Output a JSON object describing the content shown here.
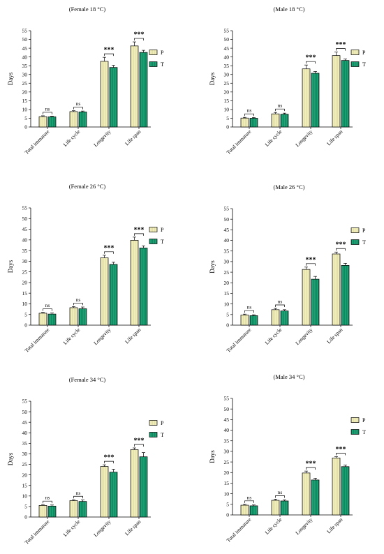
{
  "colors": {
    "P": "#f2efbd",
    "T": "#1aa676",
    "stroke": "#000000"
  },
  "chart_data": [
    {
      "type": "bar",
      "title": "(Female 18 °C)",
      "ylabel": "Days",
      "xlabel": "",
      "categories": [
        "Total immature",
        "Life cycle",
        "Longevity",
        "Life span"
      ],
      "ylim": [
        0,
        55
      ],
      "yticks": [
        0,
        5,
        10,
        15,
        20,
        25,
        30,
        35,
        40,
        45,
        50,
        55
      ],
      "legend": "right",
      "grid": false,
      "series": [
        {
          "name": "P",
          "values": [
            5.9,
            8.8,
            37.5,
            46.3
          ],
          "errors": [
            0.5,
            0.5,
            2.3,
            2.3
          ]
        },
        {
          "name": "T",
          "values": [
            5.8,
            8.6,
            34.0,
            42.6
          ],
          "errors": [
            0.4,
            0.5,
            1.2,
            1.2
          ]
        }
      ],
      "significance": [
        "ns",
        "ns",
        "***",
        "***"
      ]
    },
    {
      "type": "bar",
      "title": "(Male 18 °C)",
      "ylabel": "Days",
      "xlabel": "",
      "categories": [
        "Total immature",
        "Life cycle",
        "Longevity",
        "Life span"
      ],
      "ylim": [
        0,
        55
      ],
      "yticks": [
        0,
        5,
        10,
        15,
        20,
        25,
        30,
        35,
        40,
        45,
        50,
        55
      ],
      "legend": "right",
      "grid": false,
      "series": [
        {
          "name": "P",
          "values": [
            5.1,
            7.5,
            33.2,
            40.8
          ],
          "errors": [
            0.4,
            0.8,
            2.2,
            2.0
          ]
        },
        {
          "name": "T",
          "values": [
            5.0,
            7.3,
            30.7,
            38.0
          ],
          "errors": [
            0.4,
            0.6,
            1.0,
            0.8
          ]
        }
      ],
      "significance": [
        "ns",
        "ns",
        "***",
        "***"
      ]
    },
    {
      "type": "bar",
      "title": "(Female 26 °C)",
      "ylabel": "Days",
      "xlabel": "",
      "categories": [
        "Total immature",
        "Life cycle",
        "Longevity",
        "Life span"
      ],
      "ylim": [
        0,
        55
      ],
      "yticks": [
        0,
        5,
        10,
        15,
        20,
        25,
        30,
        35,
        40,
        45,
        50,
        55
      ],
      "legend": "right",
      "grid": false,
      "series": [
        {
          "name": "P",
          "values": [
            5.6,
            8.2,
            31.6,
            39.8
          ],
          "errors": [
            0.4,
            0.5,
            1.2,
            1.5
          ]
        },
        {
          "name": "T",
          "values": [
            5.2,
            7.7,
            28.5,
            36.2
          ],
          "errors": [
            0.5,
            0.8,
            1.0,
            1.0
          ]
        }
      ],
      "significance": [
        "ns",
        "ns",
        "***",
        "***"
      ]
    },
    {
      "type": "bar",
      "title": "(Male 26 °C)",
      "ylabel": "Days",
      "xlabel": "",
      "categories": [
        "Total immature",
        "Life cycle",
        "Longevity",
        "Life span"
      ],
      "ylim": [
        0,
        55
      ],
      "yticks": [
        0,
        5,
        10,
        15,
        20,
        25,
        30,
        35,
        40,
        45,
        50,
        55
      ],
      "legend": "right",
      "grid": false,
      "series": [
        {
          "name": "P",
          "values": [
            4.8,
            7.3,
            26.3,
            33.6
          ],
          "errors": [
            0.4,
            0.6,
            1.1,
            0.9
          ]
        },
        {
          "name": "T",
          "values": [
            4.5,
            6.7,
            21.7,
            28.2
          ],
          "errors": [
            0.4,
            0.6,
            1.3,
            1.0
          ]
        }
      ],
      "significance": [
        "ns",
        "ns",
        "***",
        "***"
      ]
    },
    {
      "type": "bar",
      "title": "(Female 34 °C)",
      "ylabel": "Days",
      "xlabel": "",
      "categories": [
        "Total immature",
        "Life cycle",
        "Longevity",
        "Life span"
      ],
      "ylim": [
        0,
        55
      ],
      "yticks": [
        0,
        5,
        10,
        15,
        20,
        25,
        30,
        35,
        40,
        45,
        50,
        55
      ],
      "legend": "right",
      "grid": false,
      "series": [
        {
          "name": "P",
          "values": [
            5.5,
            7.8,
            24.0,
            32.0
          ],
          "errors": [
            0.4,
            0.4,
            0.8,
            0.8
          ]
        },
        {
          "name": "T",
          "values": [
            5.2,
            7.4,
            21.3,
            28.6
          ],
          "errors": [
            0.5,
            0.7,
            1.4,
            2.0
          ]
        }
      ],
      "significance": [
        "ns",
        "ns",
        "***",
        "***"
      ]
    },
    {
      "type": "bar",
      "title": "(Male 34 °C)",
      "ylabel": "Days",
      "xlabel": "",
      "categories": [
        "Total immature",
        "Life cycle",
        "Longevity",
        "Life span"
      ],
      "ylim": [
        0,
        55
      ],
      "yticks": [
        0,
        5,
        10,
        15,
        20,
        25,
        30,
        35,
        40,
        45,
        50,
        55
      ],
      "legend": "right",
      "grid": false,
      "series": [
        {
          "name": "P",
          "values": [
            4.6,
            6.9,
            19.8,
            26.9
          ],
          "errors": [
            0.4,
            0.5,
            0.9,
            0.6
          ]
        },
        {
          "name": "T",
          "values": [
            4.3,
            6.6,
            16.5,
            22.8
          ],
          "errors": [
            0.4,
            0.5,
            0.8,
            0.7
          ]
        }
      ],
      "significance": [
        "ns",
        "ns",
        "***",
        "***"
      ]
    }
  ]
}
